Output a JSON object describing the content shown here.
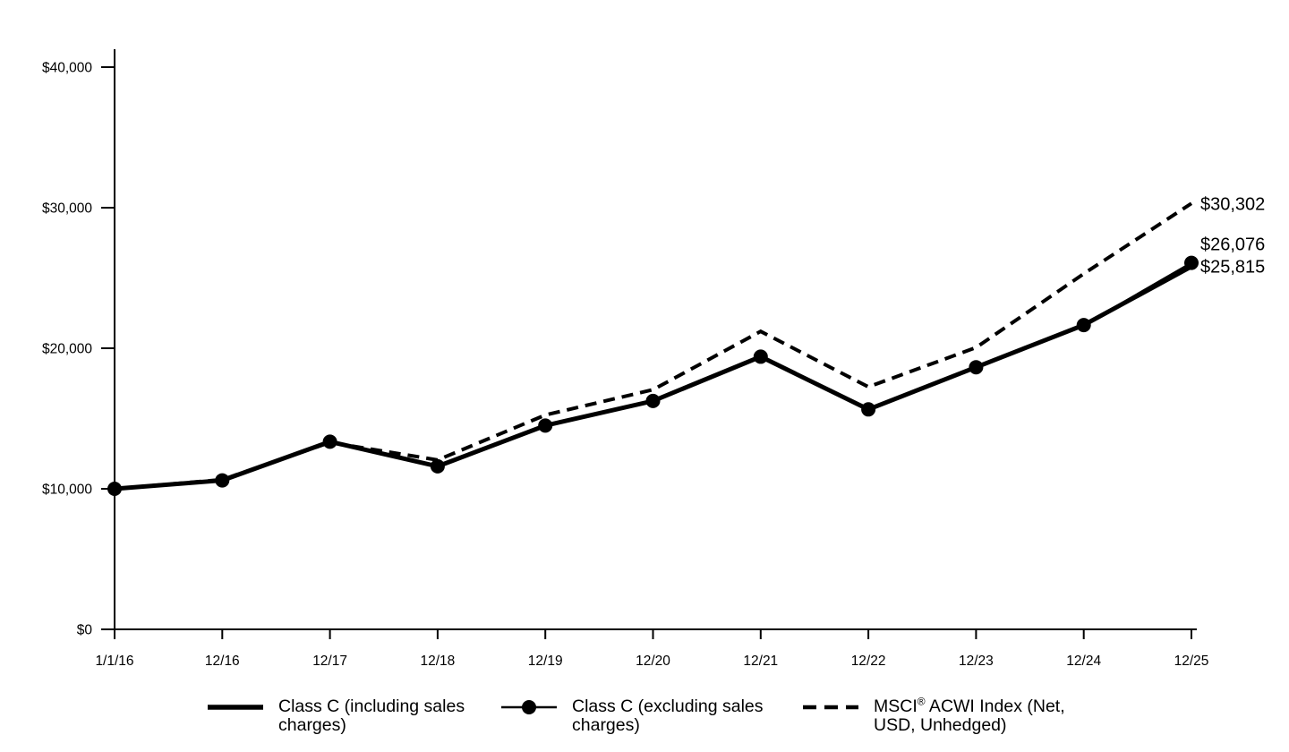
{
  "chart_data": {
    "type": "line",
    "x_labels": [
      "1/1/16",
      "12/16",
      "12/17",
      "12/18",
      "12/19",
      "12/20",
      "12/21",
      "12/22",
      "12/23",
      "12/24",
      "12/25"
    ],
    "y_ticks": [
      {
        "label": "$0",
        "value": 0
      },
      {
        "label": "$10,000",
        "value": 10000
      },
      {
        "label": "$20,000",
        "value": 20000
      },
      {
        "label": "$30,000",
        "value": 30000
      },
      {
        "label": "$40,000",
        "value": 40000
      }
    ],
    "ylim": [
      0,
      40000
    ],
    "grid": false,
    "legend_position": "bottom",
    "line_color": "#000000",
    "background_color": "#ffffff",
    "series": [
      {
        "name": "Class C (including sales charges)",
        "style": "solid-thick",
        "end_label": "$25,815",
        "values": [
          10000,
          10600,
          13350,
          11600,
          14500,
          16250,
          19400,
          15650,
          18650,
          21650,
          25815
        ]
      },
      {
        "name": "Class C (excluding sales charges)",
        "style": "solid-marker",
        "end_label": "$26,076",
        "values": [
          10000,
          10600,
          13350,
          11600,
          14500,
          16250,
          19400,
          15650,
          18650,
          21650,
          26076
        ]
      },
      {
        "name": "MSCI® ACWI Index (Net, USD, Unhedged)",
        "style": "dashed",
        "end_label": "$30,302",
        "values": [
          10000,
          10650,
          13300,
          12050,
          15250,
          17050,
          21200,
          17250,
          20050,
          25300,
          30302
        ]
      }
    ],
    "legend": [
      {
        "style": "solid-thick",
        "lines": [
          [
            {
              "t": "Class C (including sales"
            }
          ],
          [
            {
              "t": "charges)"
            }
          ]
        ]
      },
      {
        "style": "solid-marker",
        "lines": [
          [
            {
              "t": "Class C (excluding sales"
            }
          ],
          [
            {
              "t": "charges)"
            }
          ]
        ]
      },
      {
        "style": "dashed",
        "lines": [
          [
            {
              "t": "MSCI"
            },
            {
              "sup": "®"
            },
            {
              "t": " ACWI Index (Net,"
            }
          ],
          [
            {
              "t": "USD, Unhedged)"
            }
          ]
        ]
      }
    ]
  }
}
